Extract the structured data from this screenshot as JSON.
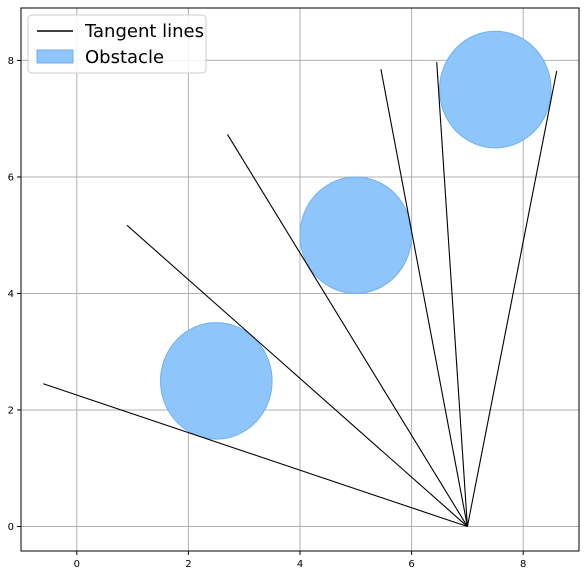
{
  "chart_data": {
    "type": "line",
    "title": "",
    "xlabel": "",
    "ylabel": "",
    "xlim": [
      -1.0,
      9.0
    ],
    "ylim": [
      -0.42,
      8.9
    ],
    "x_ticks": [
      0,
      2,
      4,
      6,
      8
    ],
    "y_ticks": [
      0,
      2,
      4,
      6,
      8
    ],
    "grid": true,
    "legend": {
      "placement": "top-left",
      "entries": [
        {
          "label": "Tangent lines",
          "kind": "line",
          "color": "#000000"
        },
        {
          "label": "Obstacle",
          "kind": "patch",
          "color": "#8ec5fb",
          "edge": "#6fb1f2"
        }
      ]
    },
    "origin": {
      "x": 7.0,
      "y": 0.0
    },
    "obstacles": [
      {
        "cx": 2.5,
        "cy": 2.5,
        "r": 1.0
      },
      {
        "cx": 5.0,
        "cy": 5.0,
        "r": 1.0
      },
      {
        "cx": 7.5,
        "cy": 7.5,
        "r": 1.0
      }
    ],
    "series": [
      {
        "x": [
          7.0,
          -0.6
        ],
        "y": [
          0.0,
          2.45
        ]
      },
      {
        "x": [
          7.0,
          0.9
        ],
        "y": [
          0.0,
          5.17
        ]
      },
      {
        "x": [
          7.0,
          2.7
        ],
        "y": [
          0.0,
          6.73
        ]
      },
      {
        "x": [
          7.0,
          5.45
        ],
        "y": [
          0.0,
          7.85
        ]
      },
      {
        "x": [
          7.0,
          6.45
        ],
        "y": [
          0.0,
          7.97
        ]
      },
      {
        "x": [
          7.0,
          8.6
        ],
        "y": [
          0.0,
          7.82
        ]
      }
    ],
    "colors": {
      "grid": "#b0b0b0",
      "axes": "#000000",
      "line": "#000000",
      "obstacle_fill": "#8ec5fb",
      "obstacle_edge": "#6fb1f2"
    }
  }
}
